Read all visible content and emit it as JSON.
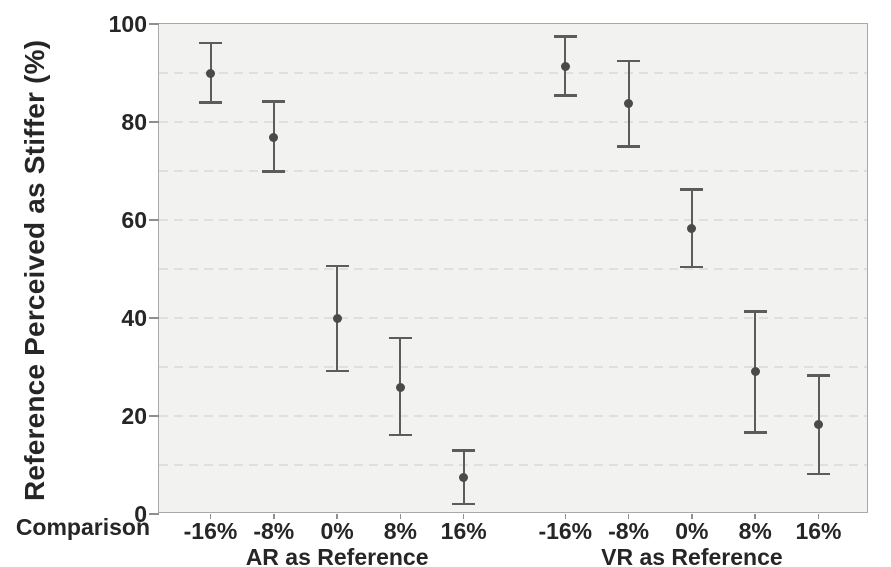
{
  "colors": {
    "background": "#ffffff",
    "plot_background": "#f2f2f0",
    "gridline": "#e0dfdd",
    "plot_border": "#a9a9a9",
    "tick": "#8f8f8f",
    "text": "#262626",
    "marker": "#4a4a4a",
    "error_bar": "#5c5c5c"
  },
  "chart_data": {
    "type": "scatter",
    "subtype": "point-estimates-with-error-bars",
    "title": "",
    "ylabel": "Reference Perceived as Stiffer (%)",
    "xlabel_prefix": "Comparison",
    "ylim": [
      0,
      100
    ],
    "ytick_labels": [
      0,
      20,
      40,
      60,
      80,
      100
    ],
    "grid": "horizontal-dashed-every-10",
    "legend": "none",
    "groups": [
      {
        "label": "AR as Reference",
        "categories": [
          "-16%",
          "-8%",
          "0%",
          "8%",
          "16%"
        ],
        "points": [
          {
            "x": "-16%",
            "mean": 90.0,
            "ci_low": 84.0,
            "ci_high": 96.1
          },
          {
            "x": "-8%",
            "mean": 76.8,
            "ci_low": 69.9,
            "ci_high": 84.2
          },
          {
            "x": "0%",
            "mean": 39.8,
            "ci_low": 29.2,
            "ci_high": 50.6
          },
          {
            "x": "8%",
            "mean": 25.9,
            "ci_low": 16.1,
            "ci_high": 35.9
          },
          {
            "x": "16%",
            "mean": 7.4,
            "ci_low": 2.0,
            "ci_high": 13.0
          }
        ]
      },
      {
        "label": "VR as Reference",
        "categories": [
          "-16%",
          "-8%",
          "0%",
          "8%",
          "16%"
        ],
        "points": [
          {
            "x": "-16%",
            "mean": 91.4,
            "ci_low": 85.4,
            "ci_high": 97.4
          },
          {
            "x": "-8%",
            "mean": 83.7,
            "ci_low": 75.0,
            "ci_high": 92.5
          },
          {
            "x": "0%",
            "mean": 58.2,
            "ci_low": 50.4,
            "ci_high": 66.2
          },
          {
            "x": "8%",
            "mean": 29.1,
            "ci_low": 16.6,
            "ci_high": 41.3
          },
          {
            "x": "16%",
            "mean": 18.2,
            "ci_low": 8.2,
            "ci_high": 28.3
          }
        ]
      }
    ]
  }
}
